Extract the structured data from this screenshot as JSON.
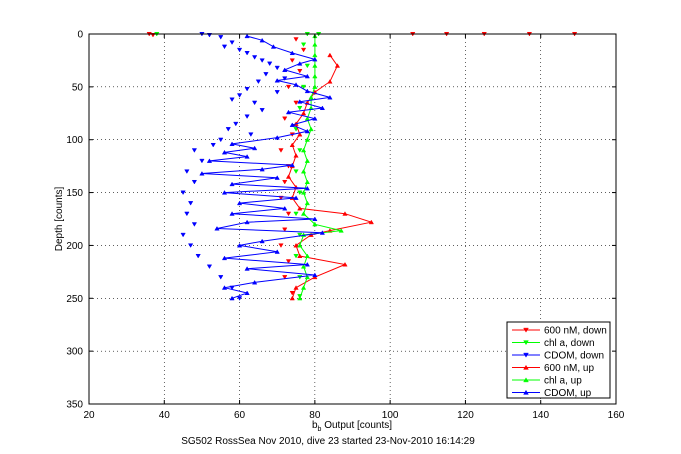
{
  "chart_data": {
    "type": "scatter",
    "title": "",
    "xlabel_main": "b",
    "xlabel_sub": "b",
    "xlabel_rest": " Output [counts]",
    "ylabel": "Depth [counts]",
    "xlim": [
      20,
      160
    ],
    "ylim": [
      350,
      0
    ],
    "xticks": [
      "20",
      "40",
      "60",
      "80",
      "100",
      "120",
      "140",
      "160"
    ],
    "yticks": [
      "0",
      "50",
      "100",
      "150",
      "200",
      "250",
      "300",
      "350"
    ],
    "grid": true,
    "legend_position": "bottom-right",
    "caption": "SG502 RossSea Nov 2010, dive 23 started 23-Nov-2010 16:14:29",
    "colors": {
      "red": "#ff0000",
      "green": "#00ff00",
      "blue": "#0000ff"
    },
    "series": [
      {
        "name": "600 nM, down",
        "color": "#ff0000",
        "marker": "triangle-down",
        "line": false,
        "points": [
          [
            36,
            0
          ],
          [
            37,
            1
          ],
          [
            106,
            0
          ],
          [
            115,
            0
          ],
          [
            125,
            0
          ],
          [
            137,
            0
          ],
          [
            149,
            0
          ],
          [
            75,
            5
          ],
          [
            77,
            15
          ],
          [
            74,
            25
          ],
          [
            76,
            35
          ],
          [
            73,
            50
          ],
          [
            75,
            65
          ],
          [
            72,
            80
          ],
          [
            74,
            95
          ],
          [
            71,
            110
          ],
          [
            73,
            125
          ],
          [
            72,
            140
          ],
          [
            71,
            155
          ],
          [
            73,
            170
          ],
          [
            72,
            185
          ],
          [
            71,
            200
          ],
          [
            73,
            215
          ],
          [
            72,
            230
          ],
          [
            74,
            245
          ]
        ]
      },
      {
        "name": "chl a, down",
        "color": "#00ff00",
        "marker": "triangle-down",
        "line": false,
        "points": [
          [
            38,
            0
          ],
          [
            78,
            0
          ],
          [
            81,
            0
          ],
          [
            77,
            10
          ],
          [
            78,
            30
          ],
          [
            77,
            50
          ],
          [
            76,
            70
          ],
          [
            75,
            90
          ],
          [
            76,
            110
          ],
          [
            75,
            130
          ],
          [
            76,
            150
          ],
          [
            75,
            170
          ],
          [
            76,
            190
          ],
          [
            75,
            210
          ],
          [
            76,
            230
          ],
          [
            76,
            248
          ]
        ]
      },
      {
        "name": "CDOM, down",
        "color": "#0000ff",
        "marker": "triangle-down",
        "line": false,
        "points": [
          [
            50,
            0
          ],
          [
            52,
            1
          ],
          [
            55,
            3
          ],
          [
            58,
            8
          ],
          [
            56,
            12
          ],
          [
            60,
            15
          ],
          [
            62,
            18
          ],
          [
            64,
            22
          ],
          [
            66,
            25
          ],
          [
            68,
            28
          ],
          [
            70,
            32
          ],
          [
            67,
            38
          ],
          [
            72,
            42
          ],
          [
            65,
            45
          ],
          [
            62,
            52
          ],
          [
            60,
            58
          ],
          [
            58,
            62
          ],
          [
            64,
            65
          ],
          [
            70,
            55
          ],
          [
            66,
            72
          ],
          [
            62,
            78
          ],
          [
            59,
            85
          ],
          [
            57,
            90
          ],
          [
            63,
            95
          ],
          [
            55,
            100
          ],
          [
            53,
            105
          ],
          [
            48,
            110
          ],
          [
            50,
            120
          ],
          [
            46,
            130
          ],
          [
            48,
            140
          ],
          [
            45,
            150
          ],
          [
            47,
            160
          ],
          [
            46,
            170
          ],
          [
            48,
            180
          ],
          [
            45,
            190
          ],
          [
            47,
            200
          ],
          [
            49,
            210
          ],
          [
            52,
            220
          ],
          [
            55,
            230
          ],
          [
            58,
            240
          ],
          [
            60,
            250
          ]
        ]
      },
      {
        "name": "600 nM, up",
        "color": "#ff0000",
        "marker": "triangle-up",
        "line": true,
        "points": [
          [
            74,
            250
          ],
          [
            75,
            240
          ],
          [
            80,
            230
          ],
          [
            88,
            218
          ],
          [
            76,
            210
          ],
          [
            75,
            200
          ],
          [
            79,
            190
          ],
          [
            84,
            186
          ],
          [
            95,
            178
          ],
          [
            88,
            170
          ],
          [
            76,
            165
          ],
          [
            74,
            155
          ],
          [
            75,
            145
          ],
          [
            73,
            135
          ],
          [
            74,
            125
          ],
          [
            75,
            115
          ],
          [
            74,
            105
          ],
          [
            76,
            95
          ],
          [
            75,
            85
          ],
          [
            77,
            75
          ],
          [
            78,
            65
          ],
          [
            80,
            55
          ],
          [
            84,
            45
          ],
          [
            86,
            30
          ],
          [
            84,
            20
          ]
        ]
      },
      {
        "name": "chl a, up",
        "color": "#00ff00",
        "marker": "triangle-up",
        "line": true,
        "points": [
          [
            76,
            250
          ],
          [
            77,
            240
          ],
          [
            78,
            230
          ],
          [
            77,
            220
          ],
          [
            78,
            210
          ],
          [
            76,
            200
          ],
          [
            77,
            190
          ],
          [
            87,
            186
          ],
          [
            80,
            180
          ],
          [
            77,
            170
          ],
          [
            78,
            160
          ],
          [
            77,
            150
          ],
          [
            78,
            140
          ],
          [
            77,
            130
          ],
          [
            78,
            120
          ],
          [
            77,
            110
          ],
          [
            78,
            100
          ],
          [
            79,
            90
          ],
          [
            78,
            80
          ],
          [
            79,
            70
          ],
          [
            79,
            60
          ],
          [
            80,
            50
          ],
          [
            80,
            40
          ],
          [
            80,
            30
          ],
          [
            80,
            20
          ],
          [
            80,
            10
          ],
          [
            80,
            2
          ]
        ]
      },
      {
        "name": "CDOM, up",
        "color": "#0000ff",
        "marker": "triangle-up",
        "line": true,
        "points": [
          [
            58,
            250
          ],
          [
            62,
            245
          ],
          [
            56,
            240
          ],
          [
            64,
            235
          ],
          [
            80,
            228
          ],
          [
            62,
            222
          ],
          [
            78,
            218
          ],
          [
            56,
            212
          ],
          [
            70,
            206
          ],
          [
            60,
            200
          ],
          [
            66,
            196
          ],
          [
            82,
            188
          ],
          [
            54,
            184
          ],
          [
            62,
            178
          ],
          [
            80,
            175
          ],
          [
            58,
            170
          ],
          [
            72,
            165
          ],
          [
            60,
            160
          ],
          [
            75,
            155
          ],
          [
            56,
            150
          ],
          [
            78,
            146
          ],
          [
            58,
            142
          ],
          [
            70,
            136
          ],
          [
            50,
            132
          ],
          [
            66,
            128
          ],
          [
            74,
            124
          ],
          [
            52,
            120
          ],
          [
            62,
            116
          ],
          [
            56,
            112
          ],
          [
            64,
            108
          ],
          [
            58,
            104
          ],
          [
            70,
            98
          ],
          [
            78,
            92
          ],
          [
            74,
            86
          ],
          [
            80,
            80
          ],
          [
            73,
            74
          ],
          [
            82,
            70
          ],
          [
            76,
            64
          ],
          [
            84,
            60
          ],
          [
            78,
            54
          ],
          [
            75,
            48
          ],
          [
            70,
            44
          ],
          [
            78,
            40
          ],
          [
            72,
            34
          ],
          [
            76,
            28
          ],
          [
            80,
            24
          ],
          [
            74,
            18
          ],
          [
            69,
            12
          ],
          [
            66,
            6
          ],
          [
            62,
            2
          ]
        ]
      }
    ]
  }
}
